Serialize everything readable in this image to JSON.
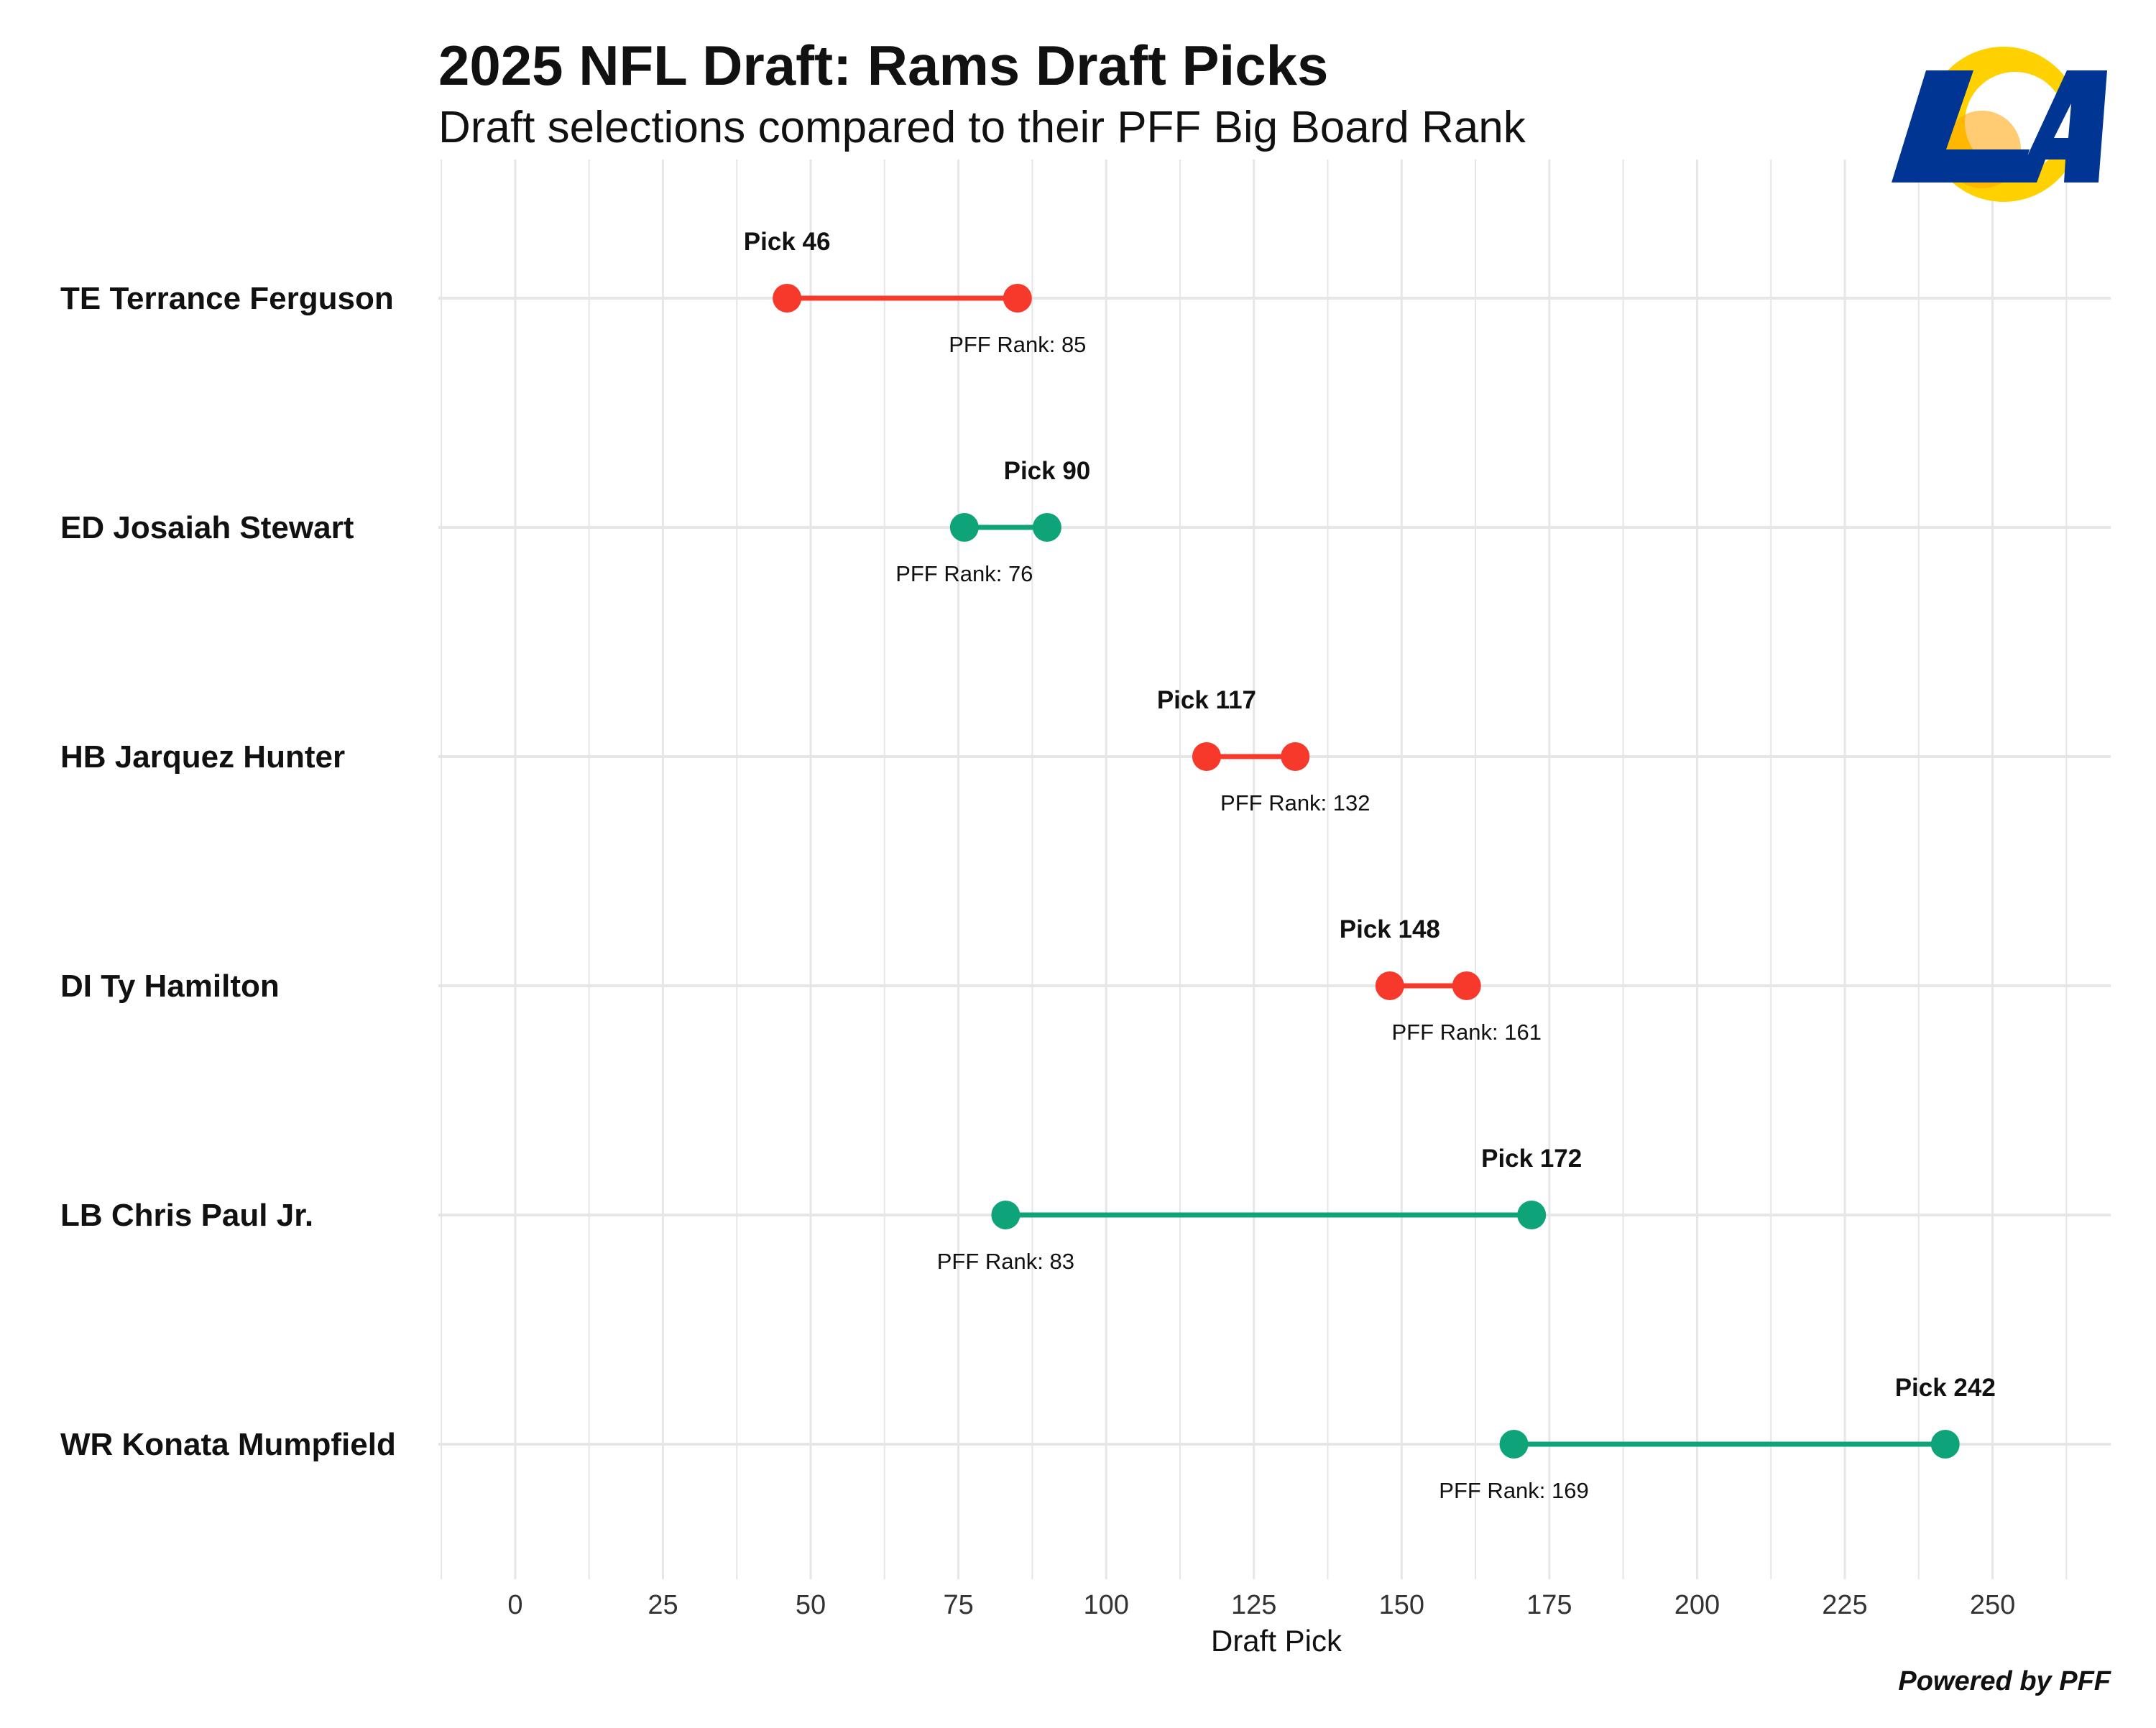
{
  "header": {
    "title": "2025 NFL Draft: Rams Draft Picks",
    "subtitle": "Draft selections compared to their PFF Big Board Rank"
  },
  "logo": {
    "name": "rams-la-logo",
    "text": "LA",
    "colors": [
      "#003594",
      "#FFD100",
      "#FFA300"
    ]
  },
  "footer": {
    "credit": "Powered by PFF"
  },
  "colors": {
    "reach": "#F6392A",
    "value": "#0FA37A",
    "grid": "#E6E6E6",
    "text": "#111111"
  },
  "chart_data": {
    "type": "dumbbell",
    "xlabel": "Draft Pick",
    "xlim": [
      -13,
      270
    ],
    "x_ticks": [
      0,
      25,
      50,
      75,
      100,
      125,
      150,
      175,
      200,
      225,
      250
    ],
    "grid": true,
    "pick_label_prefix": "Pick ",
    "rank_label_prefix": "PFF Rank: ",
    "players": [
      {
        "label": "TE Terrance Ferguson",
        "pick": 46,
        "pff_rank": 85,
        "color": "#F6392A"
      },
      {
        "label": "ED Josaiah Stewart",
        "pick": 90,
        "pff_rank": 76,
        "color": "#0FA37A"
      },
      {
        "label": "HB Jarquez Hunter",
        "pick": 117,
        "pff_rank": 132,
        "color": "#F6392A"
      },
      {
        "label": "DI Ty Hamilton",
        "pick": 148,
        "pff_rank": 161,
        "color": "#F6392A"
      },
      {
        "label": "LB Chris Paul Jr.",
        "pick": 172,
        "pff_rank": 83,
        "color": "#0FA37A"
      },
      {
        "label": "WR Konata Mumpfield",
        "pick": 242,
        "pff_rank": 169,
        "color": "#0FA37A"
      }
    ]
  }
}
